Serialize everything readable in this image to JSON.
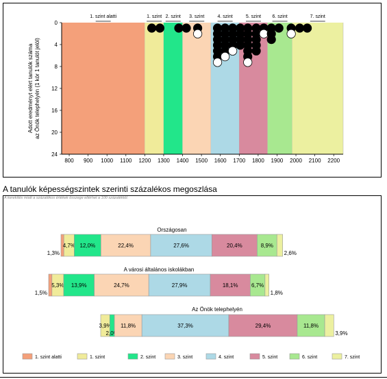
{
  "colors": {
    "level_colors": [
      "#f4a07a",
      "#f0eb9a",
      "#22e68a",
      "#fbd5b4",
      "#add9e6",
      "#d88a9e",
      "#a8e890",
      "#ecf0a0"
    ],
    "top_band_colors": [
      "#f4a07a",
      "#f0eb9a",
      "#22e68a",
      "#fbd5b4",
      "#add9e6",
      "#d88a9e",
      "#a8e890",
      "#ecf0a0"
    ]
  },
  "top": {
    "y_label_line1": "Adott eredményt elért tanulók száma",
    "y_label_line2": "az Önök telephelyén (1 kör 1 tanulót jelöl)"
  },
  "section_title": "A tanulók képességszintek szerinti százalékos megoszlása",
  "bottom": {
    "note": "A kerekítés miatt a százalékos értékek összege eltérhet a 100 százaléktól."
  },
  "chart_data": [
    {
      "type": "scatter",
      "title": "",
      "xlabel": "",
      "ylabel": "Adott eredményt elért tanulók száma az Önök telephelyén (1 kör 1 tanulót jelöl)",
      "xlim": [
        760,
        2250
      ],
      "ylim": [
        0,
        24
      ],
      "y_inverted": true,
      "x_ticks": [
        800,
        900,
        1000,
        1100,
        1200,
        1300,
        1400,
        1500,
        1600,
        1700,
        1800,
        1900,
        2000,
        2100,
        2200
      ],
      "y_ticks": [
        0,
        4,
        8,
        12,
        16,
        20,
        24
      ],
      "grid": false,
      "level_bands": [
        {
          "label": "1. szint alatti",
          "from": 760,
          "to": 1200
        },
        {
          "label": "1. szint",
          "from": 1200,
          "to": 1300
        },
        {
          "label": "2. szint",
          "from": 1300,
          "to": 1400
        },
        {
          "label": "3. szint",
          "from": 1400,
          "to": 1550
        },
        {
          "label": "4. szint",
          "from": 1550,
          "to": 1700
        },
        {
          "label": "5. szint",
          "from": 1700,
          "to": 1850
        },
        {
          "label": "6. szint",
          "from": 1850,
          "to": 1980
        },
        {
          "label": "7. szint",
          "from": 1980,
          "to": 2250
        }
      ],
      "student_columns": [
        {
          "x": 1237,
          "filled": 1,
          "open": 0
        },
        {
          "x": 1280,
          "filled": 1,
          "open": 0
        },
        {
          "x": 1380,
          "filled": 1,
          "open": 0
        },
        {
          "x": 1420,
          "filled": 1,
          "open": 0
        },
        {
          "x": 1480,
          "filled": 1,
          "open": 1
        },
        {
          "x": 1585,
          "filled": 6,
          "open": 1
        },
        {
          "x": 1625,
          "filled": 5,
          "open": 1
        },
        {
          "x": 1665,
          "filled": 4,
          "open": 1
        },
        {
          "x": 1705,
          "filled": 4,
          "open": 0
        },
        {
          "x": 1745,
          "filled": 6,
          "open": 1
        },
        {
          "x": 1790,
          "filled": 5,
          "open": 0
        },
        {
          "x": 1830,
          "filled": 1,
          "open": 1
        },
        {
          "x": 1870,
          "filled": 3,
          "open": 0
        },
        {
          "x": 1910,
          "filled": 1,
          "open": 0
        },
        {
          "x": 1975,
          "filled": 1,
          "open": 1
        },
        {
          "x": 2020,
          "filled": 1,
          "open": 0
        },
        {
          "x": 2060,
          "filled": 1,
          "open": 0
        }
      ]
    },
    {
      "type": "bar",
      "stacked": true,
      "orientation": "horizontal",
      "categories": [
        "Országosan",
        "A városi általános iskolákban",
        "Az Önök telephelyén"
      ],
      "series": [
        {
          "name": "1. szint alatti",
          "values": [
            1.3,
            1.5,
            0
          ]
        },
        {
          "name": "1. szint",
          "values": [
            4.7,
            5.3,
            3.9
          ]
        },
        {
          "name": "2. szint",
          "values": [
            12.0,
            13.9,
            2.0
          ]
        },
        {
          "name": "3. szint",
          "values": [
            22.4,
            24.7,
            11.8
          ]
        },
        {
          "name": "4. szint",
          "values": [
            27.6,
            27.9,
            37.3
          ]
        },
        {
          "name": "5. szint",
          "values": [
            20.4,
            18.1,
            29.4
          ]
        },
        {
          "name": "6. szint",
          "values": [
            8.9,
            6.7,
            11.8
          ]
        },
        {
          "name": "7. szint",
          "values": [
            2.6,
            1.8,
            3.9
          ]
        }
      ],
      "segment_labels": [
        [
          "1,3%",
          "4,7%",
          "12,0%",
          "22,4%",
          "27,6%",
          "20,4%",
          "8,9%",
          "2,6%"
        ],
        [
          "1,5%",
          "5,3%",
          "13,9%",
          "24,7%",
          "27,9%",
          "18,1%",
          "6,7%",
          "1,8%"
        ],
        [
          "",
          "3,9%",
          "2,0%",
          "11,8%",
          "37,3%",
          "29,4%",
          "11,8%",
          "3,9%"
        ]
      ],
      "legend": [
        "1. szint alatti",
        "1. szint",
        "2. szint",
        "3. szint",
        "4. szint",
        "5. szint",
        "6. szint",
        "7. szint"
      ],
      "legend_position": "bottom"
    }
  ]
}
